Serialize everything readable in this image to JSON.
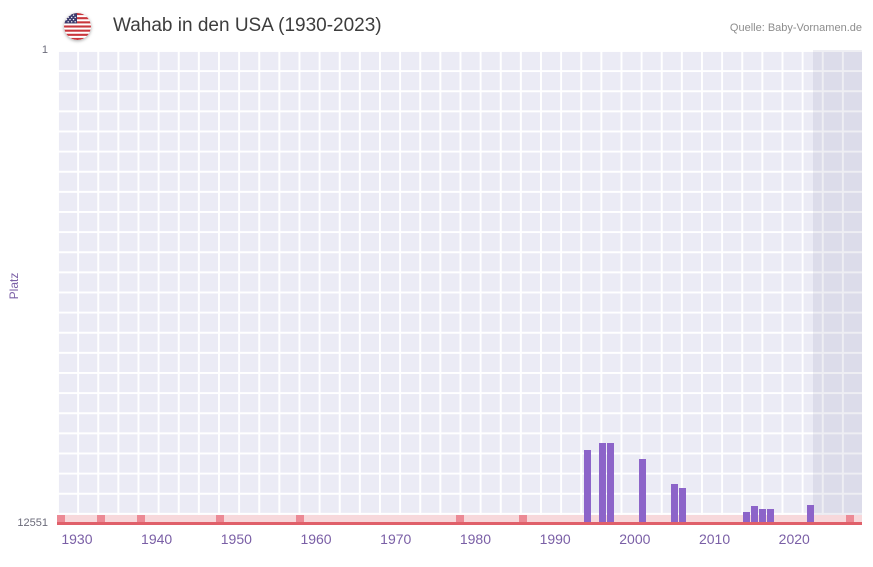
{
  "header": {
    "title": "Wahab in den USA (1930-2023)",
    "source": "Quelle: Baby-Vornamen.de",
    "flag_icon": "us-flag-icon"
  },
  "chart_data": {
    "type": "bar",
    "title": "Wahab in den USA (1930-2023)",
    "xlabel": "",
    "ylabel": "Platz",
    "grid": true,
    "legend": null,
    "y_axis": {
      "top_label": "1",
      "bottom_label": "12551",
      "min": 1,
      "max": 12551,
      "inverted": true
    },
    "x_axis": {
      "domain": [
        1927.5,
        2028.5
      ],
      "ticks": [
        "1930",
        "1940",
        "1950",
        "1960",
        "1970",
        "1980",
        "1990",
        "2000",
        "2010",
        "2020"
      ]
    },
    "bars": [
      {
        "year": 1994,
        "rank": 10560
      },
      {
        "year": 1996,
        "rank": 10380
      },
      {
        "year": 1997,
        "rank": 10380
      },
      {
        "year": 2001,
        "rank": 10800
      },
      {
        "year": 2005,
        "rank": 11480
      },
      {
        "year": 2006,
        "rank": 11580
      },
      {
        "year": 2014,
        "rank": 12220
      },
      {
        "year": 2015,
        "rank": 12060
      },
      {
        "year": 2016,
        "rank": 12120
      },
      {
        "year": 2017,
        "rank": 12120
      },
      {
        "year": 2022,
        "rank": 12020
      }
    ],
    "axis_marks_years": [
      1928,
      1933,
      1938,
      1948,
      1958,
      1978,
      1986,
      2027
    ],
    "recent_band": {
      "from": 2022.4,
      "to": 2028.5
    },
    "colors": {
      "bar": "#8c64c9",
      "plot_background": "#ebebf5",
      "grid_line": "#ffffff",
      "recent_band_tint": "rgba(104,98,150,0.11)",
      "axis_line": "#e0606a",
      "unranked_strip": "#f7d8db",
      "unranked_mark": "#ec8a95",
      "tick_label": "#7a5fa6"
    }
  }
}
